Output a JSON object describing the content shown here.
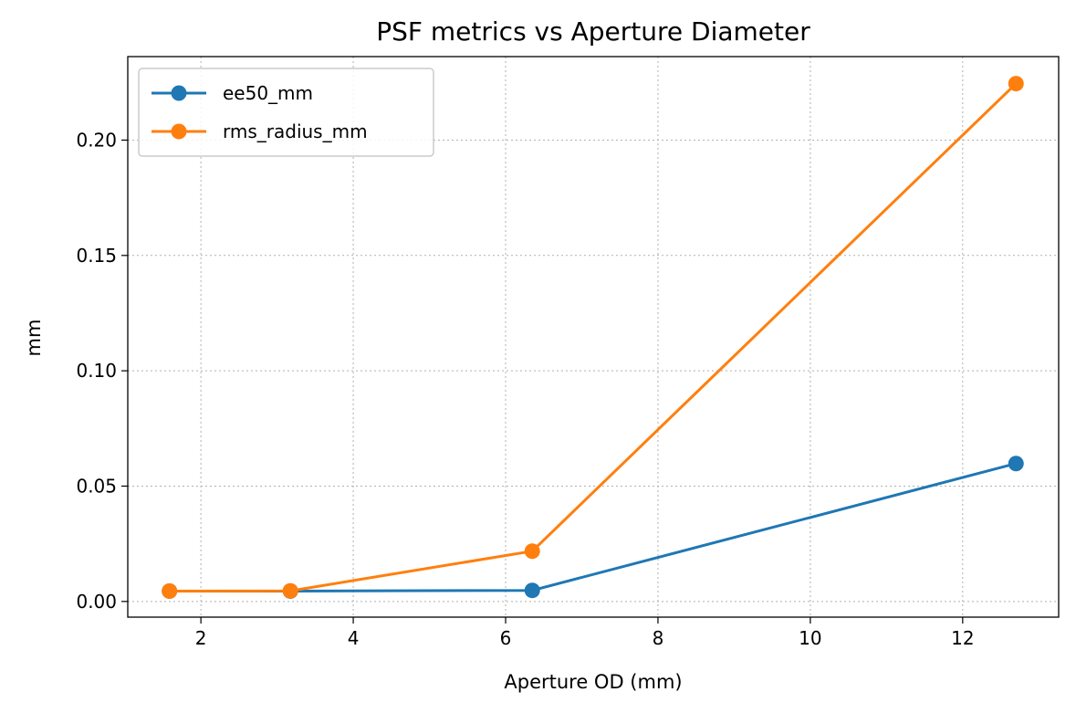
{
  "chart_data": {
    "type": "line",
    "title": "PSF metrics vs Aperture Diameter",
    "xlabel": "Aperture OD (mm)",
    "ylabel": "mm",
    "xlim": [
      1.04,
      13.26
    ],
    "ylim": [
      -0.0068,
      0.2362
    ],
    "xticks": [
      2,
      4,
      6,
      8,
      10,
      12
    ],
    "xtick_labels": [
      "2",
      "4",
      "6",
      "8",
      "10",
      "12"
    ],
    "yticks": [
      0.0,
      0.05,
      0.1,
      0.15,
      0.2
    ],
    "ytick_labels": [
      "0.00",
      "0.05",
      "0.10",
      "0.15",
      "0.20"
    ],
    "grid": true,
    "grid_style": "dotted",
    "legend_position": "top-left",
    "x": [
      1.5875,
      3.175,
      6.35,
      12.7
    ],
    "series": [
      {
        "name": "ee50_mm",
        "color": "#1f77b4",
        "values": [
          0.0045,
          0.0045,
          0.0048,
          0.0598
        ]
      },
      {
        "name": "rms_radius_mm",
        "color": "#ff7f0e",
        "values": [
          0.0045,
          0.0046,
          0.0218,
          0.2245
        ]
      }
    ]
  }
}
